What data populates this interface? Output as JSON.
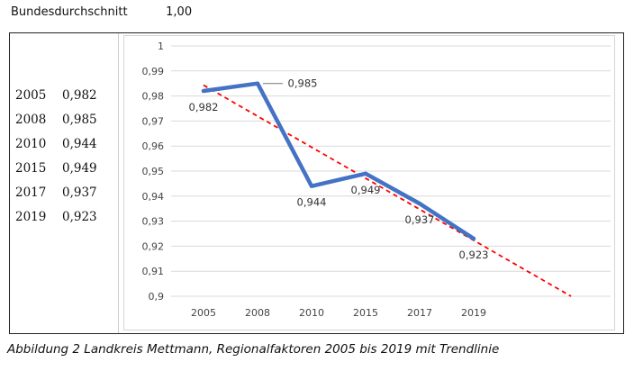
{
  "header": {
    "label": "Bundesdurchschnitt",
    "value": "1,00"
  },
  "table": [
    {
      "year": "2005",
      "value": "0,982"
    },
    {
      "year": "2008",
      "value": "0,985"
    },
    {
      "year": "2010",
      "value": "0,944"
    },
    {
      "year": "2015",
      "value": "0,949"
    },
    {
      "year": "2017",
      "value": "0,937"
    },
    {
      "year": "2019",
      "value": "0,923"
    }
  ],
  "caption": "Abbildung 2 Landkreis Mettmann, Regionalfaktoren 2005 bis 2019 mit Trendlinie",
  "chart_data": {
    "type": "line",
    "categories": [
      "2005",
      "2008",
      "2010",
      "2015",
      "2017",
      "2019"
    ],
    "series": [
      {
        "values": [
          0.982,
          0.985,
          0.944,
          0.949,
          0.937,
          0.923
        ],
        "data_labels": [
          "0,982",
          "0,985",
          "0,944",
          "0,949",
          "0,937",
          "0,923"
        ],
        "color": "#4472C4"
      }
    ],
    "trendline": {
      "style": "dashed",
      "color": "#FF0000",
      "type": "linear"
    },
    "ylim": [
      0.9,
      1.0
    ],
    "yticks": [
      0.9,
      0.91,
      0.92,
      0.93,
      0.94,
      0.95,
      0.96,
      0.97,
      0.98,
      0.99,
      1.0
    ],
    "ytick_labels": [
      "0,9",
      "0,91",
      "0,92",
      "0,93",
      "0,94",
      "0,95",
      "0,96",
      "0,97",
      "0,98",
      "0,99",
      "1"
    ],
    "grid": true,
    "title": "",
    "xlabel": "",
    "ylabel": ""
  }
}
